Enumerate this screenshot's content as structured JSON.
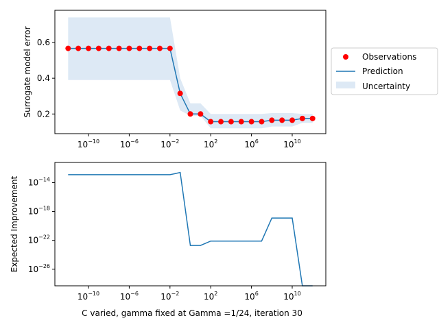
{
  "chart_data": [
    {
      "type": "line",
      "ylabel": "Surrogate model error",
      "xscale": "log",
      "xlim_exp": [
        -13.3,
        13.3
      ],
      "ylim": [
        0.09,
        0.78
      ],
      "xticks": [
        {
          "exp": -10,
          "base": "10",
          "power": "−10"
        },
        {
          "exp": -6,
          "base": "10",
          "power": "−6"
        },
        {
          "exp": -2,
          "base": "10",
          "power": "−2"
        },
        {
          "exp": 2,
          "base": "10",
          "power": "2"
        },
        {
          "exp": 6,
          "base": "10",
          "power": "6"
        },
        {
          "exp": 10,
          "base": "10",
          "power": "10"
        }
      ],
      "yticks": [
        {
          "value": 0.2,
          "label": "0.2"
        },
        {
          "value": 0.4,
          "label": "0.4"
        },
        {
          "value": 0.6,
          "label": "0.6"
        }
      ],
      "x_exp": [
        -12,
        -11,
        -10,
        -9,
        -8,
        -7,
        -6,
        -5,
        -4,
        -3,
        -2,
        -1,
        0,
        1,
        2,
        3,
        4,
        5,
        6,
        7,
        8,
        9,
        10,
        11,
        12
      ],
      "observations": [
        0.567,
        0.567,
        0.567,
        0.567,
        0.567,
        0.567,
        0.567,
        0.567,
        0.567,
        0.567,
        0.567,
        0.315,
        0.2,
        0.2,
        0.157,
        0.157,
        0.157,
        0.157,
        0.157,
        0.157,
        0.165,
        0.165,
        0.165,
        0.175,
        0.175
      ],
      "prediction": [
        0.567,
        0.567,
        0.567,
        0.567,
        0.567,
        0.567,
        0.567,
        0.567,
        0.567,
        0.567,
        0.567,
        0.315,
        0.2,
        0.2,
        0.157,
        0.157,
        0.157,
        0.157,
        0.157,
        0.157,
        0.165,
        0.165,
        0.165,
        0.175,
        0.175
      ],
      "uncertainty_upper": [
        0.74,
        0.74,
        0.74,
        0.74,
        0.74,
        0.74,
        0.74,
        0.74,
        0.74,
        0.74,
        0.74,
        0.4,
        0.26,
        0.26,
        0.2,
        0.2,
        0.2,
        0.2,
        0.2,
        0.2,
        0.205,
        0.205,
        0.205,
        0.2,
        0.2
      ],
      "uncertainty_lower": [
        0.39,
        0.39,
        0.39,
        0.39,
        0.39,
        0.39,
        0.39,
        0.39,
        0.39,
        0.39,
        0.39,
        0.22,
        0.19,
        0.19,
        0.12,
        0.12,
        0.12,
        0.12,
        0.12,
        0.12,
        0.13,
        0.13,
        0.13,
        0.15,
        0.15
      ],
      "legend": {
        "placement": "right",
        "entries": [
          {
            "key": "observations",
            "label": "Observations"
          },
          {
            "key": "prediction",
            "label": "Prediction"
          },
          {
            "key": "uncertainty",
            "label": "Uncertainty"
          }
        ]
      },
      "grid": false
    },
    {
      "type": "line",
      "ylabel": "Expected Improvement",
      "xlabel": "C varied, gamma fixed at Gamma =1/24, iteration 30",
      "xscale": "log",
      "yscale": "log",
      "xlim_exp": [
        -13.3,
        13.3
      ],
      "ylim_exp": [
        -28.3,
        -11.2
      ],
      "xticks": [
        {
          "exp": -10,
          "base": "10",
          "power": "−10"
        },
        {
          "exp": -6,
          "base": "10",
          "power": "−6"
        },
        {
          "exp": -2,
          "base": "10",
          "power": "−2"
        },
        {
          "exp": 2,
          "base": "10",
          "power": "2"
        },
        {
          "exp": 6,
          "base": "10",
          "power": "6"
        },
        {
          "exp": 10,
          "base": "10",
          "power": "10"
        }
      ],
      "yticks": [
        {
          "exp": -14,
          "base": "10",
          "power": "−14"
        },
        {
          "exp": -18,
          "base": "10",
          "power": "−18"
        },
        {
          "exp": -22,
          "base": "10",
          "power": "−22"
        },
        {
          "exp": -26,
          "base": "10",
          "power": "−26"
        }
      ],
      "x_exp": [
        -12,
        -11,
        -10,
        -9,
        -8,
        -7,
        -6,
        -5,
        -4,
        -3,
        -2,
        -1,
        0,
        1,
        2,
        3,
        4,
        5,
        6,
        7,
        8,
        9,
        10,
        11,
        12
      ],
      "values_log10": [
        -12.9,
        -12.9,
        -12.9,
        -12.9,
        -12.9,
        -12.9,
        -12.9,
        -12.9,
        -12.9,
        -12.9,
        -12.9,
        -12.6,
        -22.7,
        -22.7,
        -22.1,
        -22.1,
        -22.1,
        -22.1,
        -22.1,
        -22.1,
        -18.9,
        -18.9,
        -18.9,
        -28.3,
        -28.3
      ],
      "grid": false
    }
  ],
  "colors": {
    "observations": "#ff0000",
    "prediction": "#1f77b4",
    "uncertainty": "#dde9f5"
  }
}
